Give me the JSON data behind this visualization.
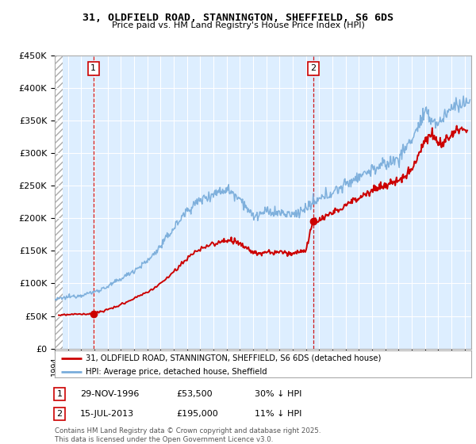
{
  "title": "31, OLDFIELD ROAD, STANNINGTON, SHEFFIELD, S6 6DS",
  "subtitle": "Price paid vs. HM Land Registry's House Price Index (HPI)",
  "ylim": [
    0,
    450000
  ],
  "xlim_start": 1994.0,
  "xlim_end": 2025.5,
  "sale1_date": 1996.92,
  "sale1_price": 53500,
  "sale2_date": 2013.54,
  "sale2_price": 195000,
  "property_color": "#cc0000",
  "hpi_color": "#7aaddb",
  "plot_bg_color": "#ddeeff",
  "legend_line1": "31, OLDFIELD ROAD, STANNINGTON, SHEFFIELD, S6 6DS (detached house)",
  "legend_line2": "HPI: Average price, detached house, Sheffield",
  "footer": "Contains HM Land Registry data © Crown copyright and database right 2025.\nThis data is licensed under the Open Government Licence v3.0.",
  "background_color": "#ffffff"
}
